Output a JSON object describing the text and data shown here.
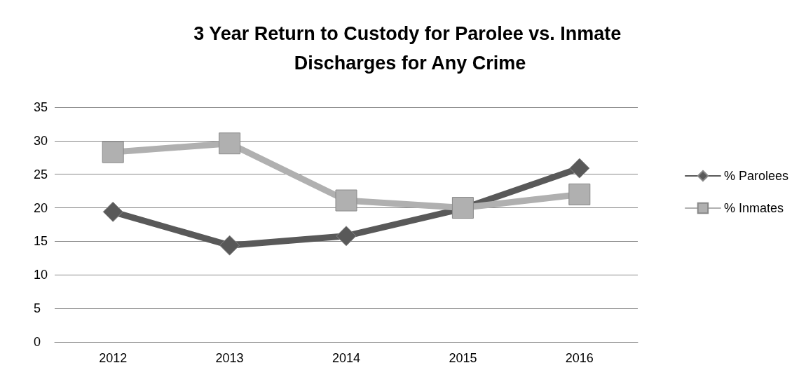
{
  "chart_data": {
    "type": "line",
    "title": "3 Year Return to Custody for Parolee vs. Inmate Discharges for Any Crime",
    "categories": [
      "2012",
      "2013",
      "2014",
      "2015",
      "2016"
    ],
    "series": [
      {
        "name": "% Parolees",
        "color": "#595959",
        "marker": "diamond",
        "values": [
          19.4,
          14.4,
          15.8,
          19.9,
          25.9
        ]
      },
      {
        "name": "% Inmates",
        "color": "#b0b0b0",
        "marker": "square",
        "values": [
          28.3,
          29.6,
          21.1,
          20.0,
          22.0
        ]
      }
    ],
    "ylim": [
      0,
      35
    ],
    "yticks": [
      0,
      5,
      10,
      15,
      20,
      25,
      30,
      35
    ],
    "grid": "y",
    "legend": "right"
  }
}
